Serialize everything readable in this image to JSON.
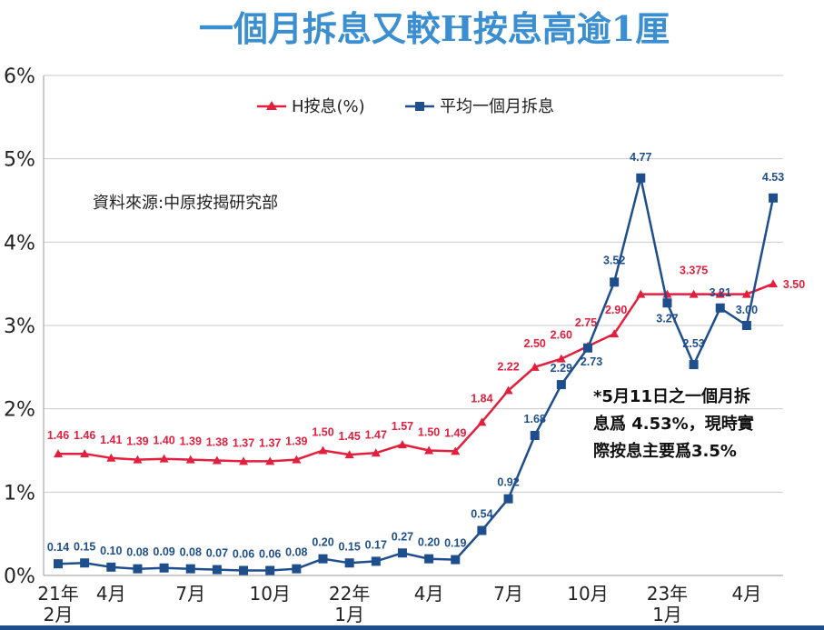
{
  "chart_data": {
    "type": "line",
    "title": "一個月拆息又較H按息高逾1厘",
    "source": "資料來源:中原按揭研究部",
    "ylim": [
      0,
      6
    ],
    "yticks": [
      "0%",
      "1%",
      "2%",
      "3%",
      "4%",
      "5%",
      "6%"
    ],
    "grid": true,
    "legend_position": "top-center",
    "x": [
      "2021-02",
      "2021-03",
      "2021-04",
      "2021-05",
      "2021-06",
      "2021-07",
      "2021-08",
      "2021-09",
      "2021-10",
      "2021-11",
      "2021-12",
      "2022-01",
      "2022-02",
      "2022-03",
      "2022-04",
      "2022-05",
      "2022-06",
      "2022-07",
      "2022-08",
      "2022-09",
      "2022-10",
      "2022-11",
      "2022-12",
      "2023-01",
      "2023-02",
      "2023-03",
      "2023-04",
      "2023-05"
    ],
    "xtick_labels": [
      {
        "line1": "21年",
        "line2": "2月",
        "index": 0
      },
      {
        "line1": "4月",
        "line2": "",
        "index": 2
      },
      {
        "line1": "7月",
        "line2": "",
        "index": 5
      },
      {
        "line1": "10月",
        "line2": "",
        "index": 8
      },
      {
        "line1": "22年",
        "line2": "1月",
        "index": 11
      },
      {
        "line1": "4月",
        "line2": "",
        "index": 14
      },
      {
        "line1": "7月",
        "line2": "",
        "index": 17
      },
      {
        "line1": "10月",
        "line2": "",
        "index": 20
      },
      {
        "line1": "23年",
        "line2": "1月",
        "index": 23
      },
      {
        "line1": "4月",
        "line2": "",
        "index": 26
      }
    ],
    "series": [
      {
        "name": "H按息(%)",
        "color": "#e21f3d",
        "marker": "triangle",
        "values": [
          1.46,
          1.46,
          1.41,
          1.39,
          1.4,
          1.39,
          1.38,
          1.37,
          1.37,
          1.39,
          1.5,
          1.45,
          1.47,
          1.57,
          1.5,
          1.49,
          1.84,
          2.22,
          2.5,
          2.6,
          2.75,
          2.9,
          3.375,
          3.375,
          3.375,
          3.375,
          3.375,
          3.5
        ],
        "labels": [
          "1.46",
          "1.46",
          "1.41",
          "1.39",
          "1.40",
          "1.39",
          "1.38",
          "1.37",
          "1.37",
          "1.39",
          "1.50",
          "1.45",
          "1.47",
          "1.57",
          "1.50",
          "1.49",
          "1.84",
          "2.22",
          "2.50",
          "2.60",
          "2.75",
          "2.90",
          "",
          "",
          "3.375",
          "",
          "",
          "3.50"
        ]
      },
      {
        "name": "平均一個月拆息",
        "color": "#1f4e8c",
        "marker": "square",
        "values": [
          0.14,
          0.15,
          0.1,
          0.08,
          0.09,
          0.08,
          0.07,
          0.06,
          0.06,
          0.08,
          0.2,
          0.15,
          0.17,
          0.27,
          0.2,
          0.19,
          0.54,
          0.92,
          1.68,
          2.29,
          2.73,
          3.52,
          4.77,
          3.27,
          2.53,
          3.21,
          3.0,
          4.53
        ],
        "labels": [
          "0.14",
          "0.15",
          "0.10",
          "0.08",
          "0.09",
          "0.08",
          "0.07",
          "0.06",
          "0.06",
          "0.08",
          "0.20",
          "0.15",
          "0.17",
          "0.27",
          "0.20",
          "0.19",
          "0.54",
          "0.92",
          "1.68",
          "2.29",
          "2.73",
          "3.52",
          "4.77",
          "3.27",
          "2.53",
          "3.21",
          "3.00",
          "4.53"
        ]
      }
    ],
    "annotation": [
      "*5月11日之一個月拆",
      "息爲 4.53%，現時實",
      "際按息主要爲3.5%"
    ]
  }
}
